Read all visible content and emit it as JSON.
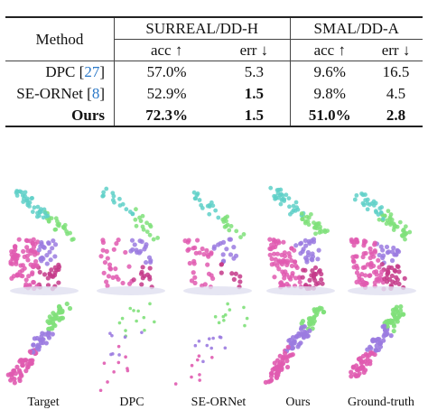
{
  "table": {
    "header": {
      "method": "Method",
      "groups": [
        "SURREAL/DD-H",
        "SMAL/DD-A"
      ],
      "acc": "acc ↑",
      "err": "err ↓"
    },
    "rows": [
      {
        "method": "DPC",
        "cite": "27",
        "values": [
          "57.0%",
          "5.3",
          "9.6%",
          "16.5"
        ]
      },
      {
        "method": "SE-ORNet",
        "cite": "8",
        "values": [
          "52.9%",
          "1.5",
          "9.8%",
          "4.5"
        ]
      },
      {
        "method": "Ours",
        "cite": "",
        "values": [
          "72.3%",
          "1.5",
          "51.0%",
          "2.8"
        ]
      }
    ]
  },
  "figure": {
    "captions": [
      "Target",
      "DPC",
      "SE-ORNet",
      "Ours",
      "Ground-truth"
    ]
  },
  "colors": {
    "cite": "#2a78c8",
    "points": [
      "#e05bb0",
      "#c43a8a",
      "#9b7be0",
      "#5fd0c8",
      "#7fe07a",
      "#5ab85a",
      "#e0e0f0"
    ]
  }
}
